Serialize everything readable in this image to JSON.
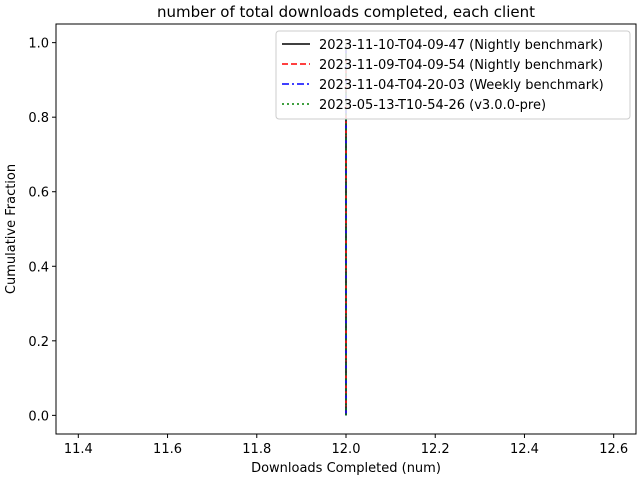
{
  "chart_data": {
    "type": "line",
    "title": "number of total downloads completed, each client",
    "xlabel": "Downloads Completed (num)",
    "ylabel": "Cumulative Fraction",
    "xlim": [
      11.35,
      12.65
    ],
    "ylim": [
      -0.05,
      1.05
    ],
    "xticks": [
      "11.4",
      "11.6",
      "11.8",
      "12.0",
      "12.2",
      "12.4",
      "12.6"
    ],
    "xtick_values": [
      11.4,
      11.6,
      11.8,
      12.0,
      12.2,
      12.4,
      12.6
    ],
    "yticks": [
      "0.0",
      "0.2",
      "0.4",
      "0.6",
      "0.8",
      "1.0"
    ],
    "ytick_values": [
      0.0,
      0.2,
      0.4,
      0.6,
      0.8,
      1.0
    ],
    "grid": false,
    "legend_position": "top-right",
    "series": [
      {
        "name": "2023-11-10-T04-09-47 (Nightly benchmark)",
        "color": "#000000",
        "dash": "solid",
        "x": [
          12.0,
          12.0
        ],
        "y": [
          0.0,
          1.0
        ]
      },
      {
        "name": "2023-11-09-T04-09-54 (Nightly benchmark)",
        "color": "#ff0000",
        "dash": "dashed",
        "x": [
          12.0,
          12.0
        ],
        "y": [
          0.0,
          1.0
        ]
      },
      {
        "name": "2023-11-04-T04-20-03 (Weekly benchmark)",
        "color": "#0000ff",
        "dash": "dashdot",
        "x": [
          12.0,
          12.0
        ],
        "y": [
          0.0,
          1.0
        ]
      },
      {
        "name": "2023-05-13-T10-54-26 (v3.0.0-pre)",
        "color": "#008000",
        "dash": "dotted",
        "x": [
          12.0,
          12.0
        ],
        "y": [
          0.0,
          1.0
        ]
      }
    ]
  }
}
